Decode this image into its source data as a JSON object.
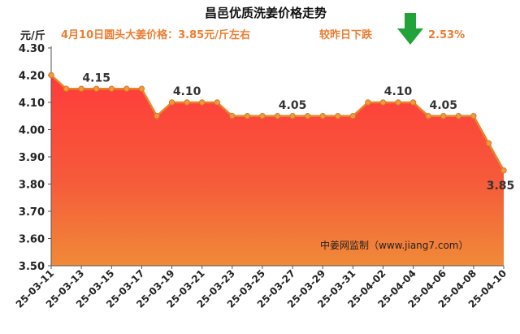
{
  "header": {
    "title": "昌邑优质洗姜价格走势",
    "unit": "元/斤",
    "price_note": "4月10日圆头大姜价格：3.85元/斤左右",
    "change_text": "较昨日下跌",
    "change_pct": "2.53%",
    "change_direction_icon": "down-arrow-icon",
    "change_color": "#22A33A"
  },
  "watermark": "中姜网监制（www.jiang7.com）",
  "colors": {
    "line": "#E8852A",
    "marker": "#ED9A3C",
    "area_top": "#FF3B3B",
    "area_bottom": "#F08A38",
    "subtitle": "#ED7D31"
  },
  "chart_data": {
    "type": "area",
    "title": "昌邑优质洗姜价格走势",
    "ylabel": "元/斤",
    "ylim": [
      3.5,
      4.3
    ],
    "yticks": [
      "3.50",
      "3.60",
      "3.70",
      "3.80",
      "3.90",
      "4.00",
      "4.10",
      "4.20",
      "4.30"
    ],
    "grid": false,
    "x": [
      "25-03-11",
      "25-03-12",
      "25-03-13",
      "25-03-14",
      "25-03-15",
      "25-03-16",
      "25-03-17",
      "25-03-18",
      "25-03-19",
      "25-03-20",
      "25-03-21",
      "25-03-22",
      "25-03-23",
      "25-03-24",
      "25-03-25",
      "25-03-26",
      "25-03-27",
      "25-03-28",
      "25-03-29",
      "25-03-30",
      "25-03-31",
      "25-04-01",
      "25-04-02",
      "25-04-03",
      "25-04-04",
      "25-04-05",
      "25-04-06",
      "25-04-07",
      "25-04-08",
      "25-04-09",
      "25-04-10"
    ],
    "xtick_labels": [
      "25-03-11",
      "25-03-13",
      "25-03-15",
      "25-03-17",
      "25-03-19",
      "25-03-21",
      "25-03-23",
      "25-03-25",
      "25-03-27",
      "25-03-29",
      "25-03-31",
      "25-04-02",
      "25-04-04",
      "25-04-06",
      "25-04-08",
      "25-04-10"
    ],
    "series": [
      {
        "values": [
          4.2,
          4.15,
          4.15,
          4.15,
          4.15,
          4.15,
          4.15,
          4.05,
          4.1,
          4.1,
          4.1,
          4.1,
          4.05,
          4.05,
          4.05,
          4.05,
          4.05,
          4.05,
          4.05,
          4.05,
          4.05,
          4.1,
          4.1,
          4.1,
          4.1,
          4.05,
          4.05,
          4.05,
          4.05,
          3.95,
          3.85
        ]
      }
    ],
    "data_labels": [
      {
        "index": 3,
        "text": "4.15"
      },
      {
        "index": 9,
        "text": "4.10"
      },
      {
        "index": 16,
        "text": "4.05"
      },
      {
        "index": 23,
        "text": "4.10"
      },
      {
        "index": 26,
        "text": "4.05"
      },
      {
        "index": 30,
        "text": "3.85"
      }
    ]
  }
}
